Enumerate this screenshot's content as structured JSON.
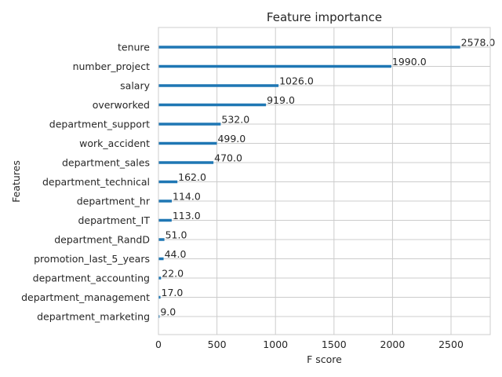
{
  "chart_data": {
    "type": "bar",
    "orientation": "horizontal",
    "title": "Feature importance",
    "xlabel": "F score",
    "ylabel": "Features",
    "xlim": [
      0,
      2835
    ],
    "xticks": [
      0,
      500,
      1000,
      1500,
      2000,
      2500
    ],
    "grid": true,
    "legend": "none",
    "bar_color": "#1f77b4",
    "categories": [
      "tenure",
      "number_project",
      "salary",
      "overworked",
      "department_support",
      "work_accident",
      "department_sales",
      "department_technical",
      "department_hr",
      "department_IT",
      "department_RandD",
      "promotion_last_5_years",
      "department_accounting",
      "department_management",
      "department_marketing"
    ],
    "values": [
      2578.0,
      1990.0,
      1026.0,
      919.0,
      532.0,
      499.0,
      470.0,
      162.0,
      114.0,
      113.0,
      51.0,
      44.0,
      22.0,
      17.0,
      9.0
    ],
    "data_labels": [
      "2578.0",
      "1990.0",
      "1026.0",
      "919.0",
      "532.0",
      "499.0",
      "470.0",
      "162.0",
      "114.0",
      "113.0",
      "51.0",
      "44.0",
      "22.0",
      "17.0",
      "9.0"
    ]
  }
}
